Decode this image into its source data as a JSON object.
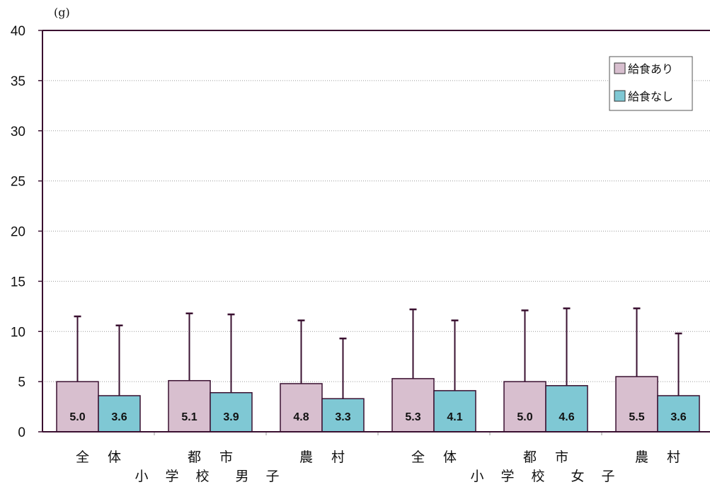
{
  "chart_data": {
    "type": "bar",
    "unit": "(g)",
    "ylim": [
      0,
      40
    ],
    "yticks": [
      0,
      5,
      10,
      15,
      20,
      25,
      30,
      35,
      40
    ],
    "grid": true,
    "legend_position": "top-right",
    "categories": [
      "全 体",
      "都 市",
      "農 村",
      "全 体",
      "都 市",
      "農 村"
    ],
    "groups": [
      {
        "label": "小 学 校　男 子",
        "categories": [
          0,
          1,
          2
        ]
      },
      {
        "label": "小 学 校　女 子",
        "categories": [
          3,
          4,
          5
        ]
      }
    ],
    "series": [
      {
        "name": "給食あり",
        "color": "#d8bfcf",
        "values": [
          5.0,
          5.1,
          4.8,
          5.3,
          5.0,
          5.5
        ],
        "labels": [
          "5.0",
          "5.1",
          "4.8",
          "5.3",
          "5.0",
          "5.5"
        ],
        "error_upper": [
          11.5,
          11.8,
          11.1,
          12.2,
          12.1,
          12.3
        ]
      },
      {
        "name": "給食なし",
        "color": "#7fc8d4",
        "values": [
          3.6,
          3.9,
          3.3,
          4.1,
          4.6,
          3.6
        ],
        "labels": [
          "3.6",
          "3.9",
          "3.3",
          "4.1",
          "4.6",
          "3.6"
        ],
        "error_upper": [
          10.6,
          11.7,
          9.3,
          11.1,
          12.3,
          9.8
        ]
      }
    ]
  }
}
